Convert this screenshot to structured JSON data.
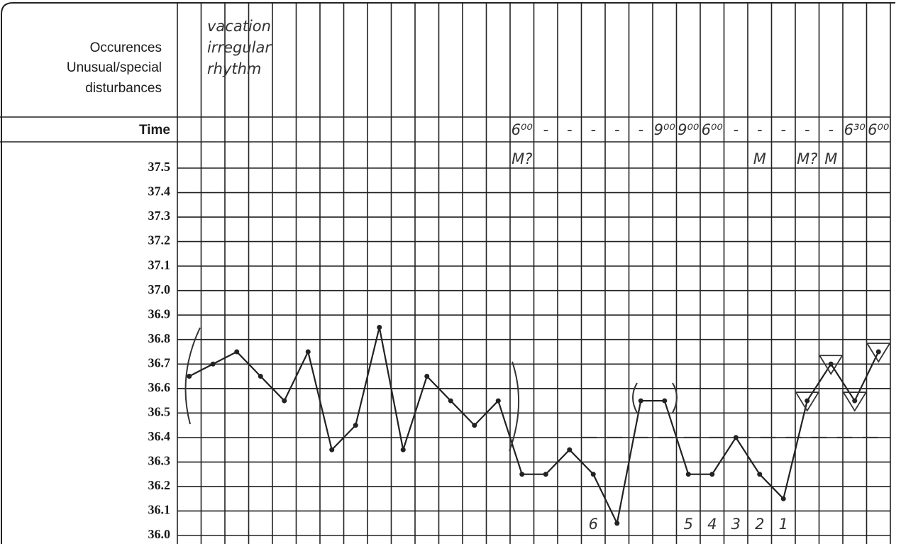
{
  "header": {
    "labels": [
      "Occurences",
      "Unusual/special",
      "disturbances"
    ],
    "time_label": "Time"
  },
  "chart_data": {
    "type": "line",
    "notes": [
      "vacation",
      "irregular",
      "rhythm"
    ],
    "categories": [
      null,
      null,
      null,
      null,
      null,
      null,
      null,
      null,
      null,
      null,
      null,
      null,
      null,
      null,
      null,
      null,
      null,
      null,
      null,
      null,
      null,
      null,
      null,
      null,
      null,
      null,
      null,
      null,
      null,
      null
    ],
    "values": [
      36.65,
      36.7,
      36.75,
      36.65,
      36.55,
      36.75,
      36.35,
      36.45,
      36.85,
      36.35,
      36.65,
      36.55,
      36.45,
      36.55,
      36.25,
      36.25,
      36.35,
      36.25,
      36.05,
      36.55,
      36.55,
      36.25,
      36.25,
      36.4,
      36.25,
      36.15,
      36.55,
      36.7,
      36.55,
      36.75
    ],
    "color": "#222222",
    "ylim": [
      36.0,
      37.5
    ],
    "yticks": [
      {
        "value": 36.0,
        "label": "36.0"
      },
      36.1,
      36.2,
      36.3,
      36.4,
      36.5,
      36.6,
      36.7,
      36.8,
      36.9,
      {
        "value": 37.0,
        "label": "37.0"
      },
      37.1,
      37.2,
      37.3,
      37.4,
      37.5
    ],
    "time_row": [
      null,
      null,
      null,
      null,
      null,
      null,
      null,
      null,
      null,
      null,
      null,
      null,
      null,
      null,
      "6⁰⁰",
      "-",
      "-",
      "-",
      "-",
      "-",
      "9⁰⁰",
      "9⁰⁰",
      "6⁰⁰",
      "-",
      "-",
      "-",
      "-",
      "-",
      "6³⁰",
      "6⁰⁰"
    ],
    "mark_row": [
      null,
      null,
      null,
      null,
      null,
      null,
      null,
      null,
      null,
      null,
      null,
      null,
      null,
      null,
      "M?",
      null,
      null,
      null,
      null,
      null,
      null,
      null,
      null,
      null,
      "M",
      null,
      "M?",
      "M",
      null,
      null
    ],
    "bottom_row": [
      null,
      null,
      null,
      null,
      null,
      null,
      null,
      null,
      null,
      null,
      null,
      null,
      null,
      null,
      null,
      null,
      null,
      "6",
      null,
      null,
      null,
      "5",
      "4",
      "3",
      "2",
      "1",
      null,
      null,
      null,
      null
    ],
    "cover_line": 36.4
  }
}
